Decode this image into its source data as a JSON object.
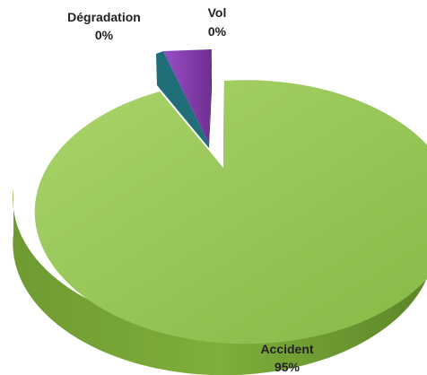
{
  "chart_data": {
    "type": "pie",
    "title": "",
    "slices": [
      {
        "label": "Accident",
        "value": 95,
        "value_label": "95%",
        "color": "#92c353"
      },
      {
        "label": "Dégradation",
        "value": 0,
        "value_label": "0%",
        "color": "#1f6e78"
      },
      {
        "label": "Vol",
        "value": 0,
        "value_label": "0%",
        "color": "#8b3fb2"
      }
    ],
    "style": "3d-exploded"
  }
}
